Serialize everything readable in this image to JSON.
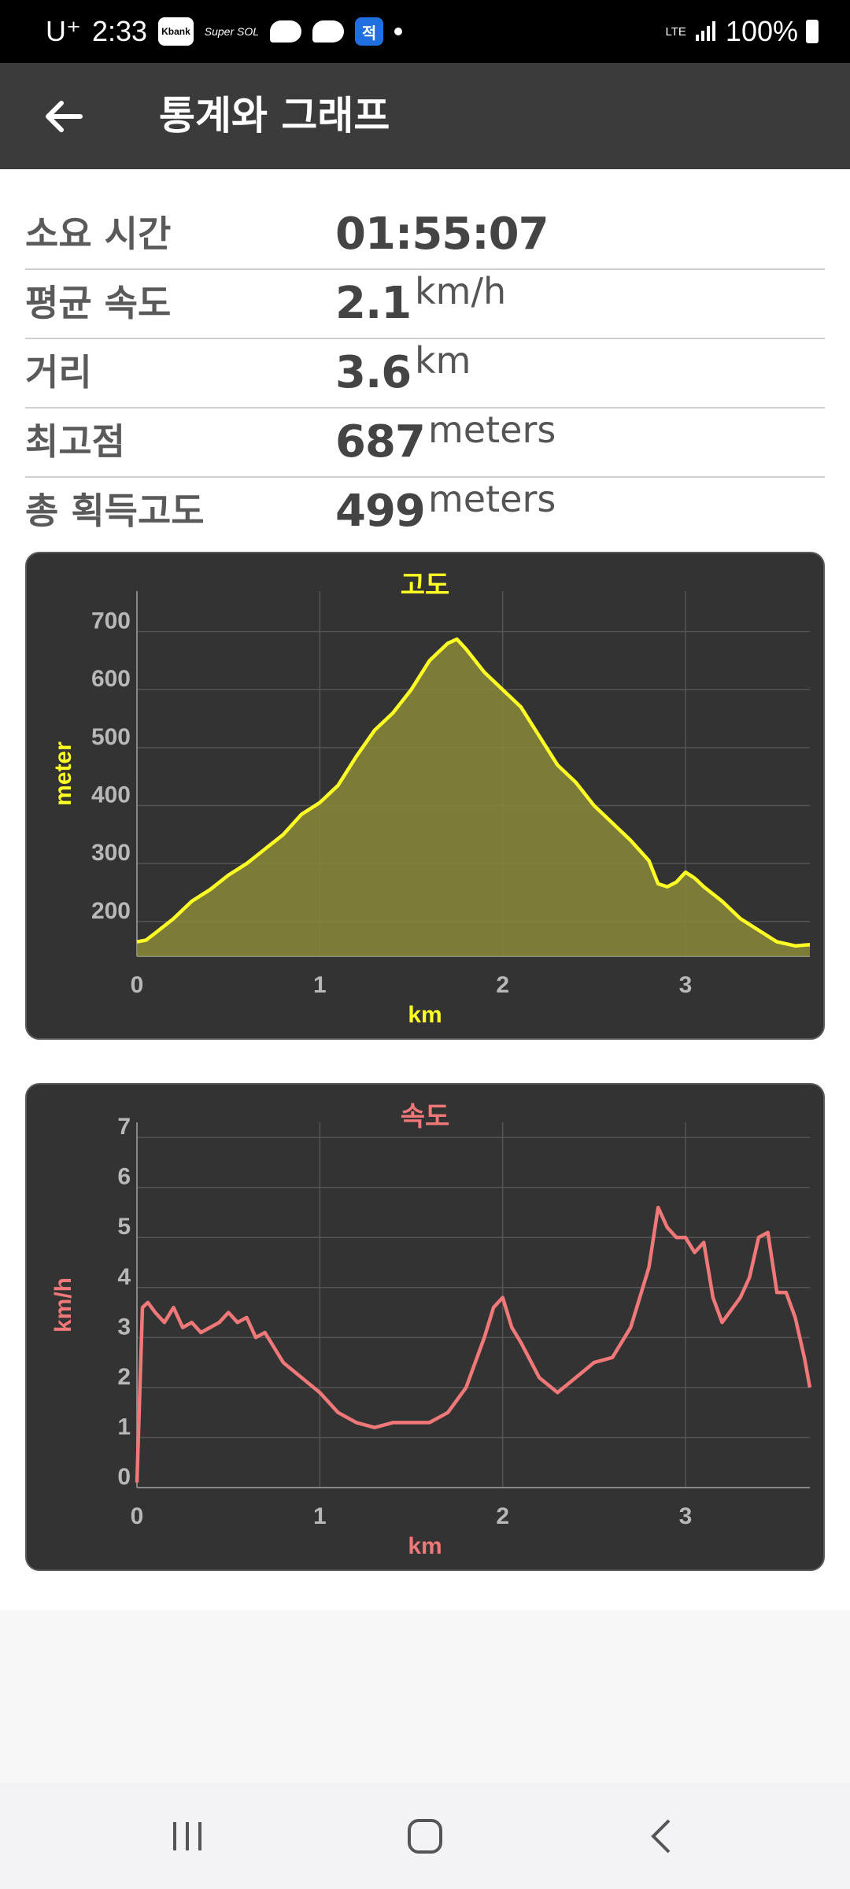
{
  "status_bar": {
    "carrier": "U⁺",
    "time": "2:33",
    "notif_icons": [
      "kbank-icon",
      "super-sol-icon",
      "chat-bubble-icon",
      "cloud-app-icon",
      "blue-app-icon"
    ],
    "kbank_label": "Kbank",
    "sol_label": "Super SOL",
    "blue_label": "적",
    "network": "LTE",
    "battery": "100%"
  },
  "app_bar": {
    "title": "통계와 그래프",
    "back_icon": "back-arrow-icon"
  },
  "stats": [
    {
      "label": "소요 시간",
      "value": "01:55:07",
      "unit": ""
    },
    {
      "label": "평균 속도",
      "value": "2.1",
      "unit": "km/h"
    },
    {
      "label": "거리",
      "value": "3.6",
      "unit": "km"
    },
    {
      "label": "최고점",
      "value": "687",
      "unit": "meters"
    },
    {
      "label": "총 획득고도",
      "value": "499",
      "unit": "meters"
    }
  ],
  "chart_data": [
    {
      "type": "area",
      "title": "고도",
      "xlabel": "km",
      "ylabel": "meter",
      "color": "#ffff26",
      "fill": "#8a8a3a",
      "xlim": [
        0,
        3.68
      ],
      "ylim": [
        140,
        770
      ],
      "xticks": [
        0,
        1,
        2,
        3
      ],
      "yticks": [
        200,
        300,
        400,
        500,
        600,
        700
      ],
      "grid": true,
      "x": [
        0,
        0.05,
        0.1,
        0.2,
        0.3,
        0.4,
        0.5,
        0.6,
        0.7,
        0.8,
        0.9,
        1.0,
        1.1,
        1.2,
        1.3,
        1.4,
        1.5,
        1.55,
        1.6,
        1.65,
        1.7,
        1.75,
        1.8,
        1.9,
        2.0,
        2.1,
        2.2,
        2.3,
        2.4,
        2.5,
        2.6,
        2.7,
        2.8,
        2.85,
        2.9,
        2.95,
        3.0,
        3.05,
        3.1,
        3.2,
        3.3,
        3.4,
        3.5,
        3.6,
        3.68
      ],
      "y": [
        165,
        168,
        180,
        205,
        235,
        255,
        280,
        300,
        325,
        350,
        385,
        405,
        435,
        485,
        530,
        560,
        600,
        625,
        650,
        665,
        680,
        687,
        670,
        630,
        600,
        570,
        520,
        470,
        440,
        400,
        370,
        340,
        305,
        265,
        260,
        268,
        285,
        275,
        260,
        235,
        205,
        185,
        165,
        158,
        160
      ]
    },
    {
      "type": "line",
      "title": "속도",
      "xlabel": "km",
      "ylabel": "km/h",
      "color": "#f07878",
      "xlim": [
        0,
        3.68
      ],
      "ylim": [
        0,
        7.3
      ],
      "xticks": [
        0,
        1,
        2,
        3
      ],
      "yticks": [
        0,
        1,
        2,
        3,
        4,
        5,
        6,
        7
      ],
      "grid": true,
      "x": [
        0,
        0.03,
        0.06,
        0.1,
        0.15,
        0.2,
        0.25,
        0.3,
        0.35,
        0.4,
        0.45,
        0.5,
        0.55,
        0.6,
        0.65,
        0.7,
        0.8,
        0.9,
        1.0,
        1.1,
        1.2,
        1.3,
        1.4,
        1.5,
        1.6,
        1.7,
        1.8,
        1.9,
        1.95,
        2.0,
        2.05,
        2.1,
        2.2,
        2.3,
        2.4,
        2.5,
        2.6,
        2.7,
        2.75,
        2.8,
        2.85,
        2.9,
        2.95,
        3.0,
        3.05,
        3.1,
        3.15,
        3.2,
        3.3,
        3.35,
        3.4,
        3.45,
        3.5,
        3.55,
        3.6,
        3.65,
        3.68
      ],
      "y": [
        0.1,
        3.6,
        3.7,
        3.5,
        3.3,
        3.6,
        3.2,
        3.3,
        3.1,
        3.2,
        3.3,
        3.5,
        3.3,
        3.4,
        3.0,
        3.1,
        2.5,
        2.2,
        1.9,
        1.5,
        1.3,
        1.2,
        1.3,
        1.3,
        1.3,
        1.5,
        2.0,
        3.0,
        3.6,
        3.8,
        3.2,
        2.9,
        2.2,
        1.9,
        2.2,
        2.5,
        2.6,
        3.2,
        3.8,
        4.4,
        5.6,
        5.2,
        5.0,
        5.0,
        4.7,
        4.9,
        3.8,
        3.3,
        3.8,
        4.2,
        5.0,
        5.1,
        3.9,
        3.9,
        3.4,
        2.6,
        2.0
      ]
    }
  ],
  "nav": {
    "icons": [
      "recent-apps-icon",
      "home-icon",
      "back-icon"
    ]
  }
}
